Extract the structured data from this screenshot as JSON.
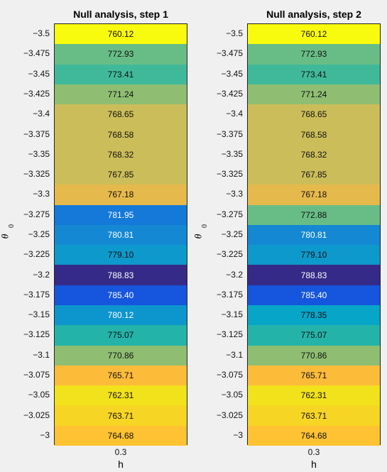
{
  "chart_data": [
    {
      "type": "heatmap",
      "title": "Null analysis, step 1",
      "xlabel": "h",
      "ylabel": "θ",
      "ylabel_subscript": "0",
      "x_categories": [
        "0.3"
      ],
      "y_categories": [
        "-3.5",
        "-3.475",
        "-3.45",
        "-3.425",
        "-3.4",
        "-3.375",
        "-3.35",
        "-3.325",
        "-3.3",
        "-3.275",
        "-3.25",
        "-3.225",
        "-3.2",
        "-3.175",
        "-3.15",
        "-3.125",
        "-3.1",
        "-3.075",
        "-3.05",
        "-3.025",
        "-3"
      ],
      "values": [
        760.12,
        772.93,
        773.41,
        771.24,
        768.65,
        768.58,
        768.32,
        767.85,
        767.18,
        781.95,
        780.81,
        779.1,
        788.83,
        785.4,
        780.12,
        775.07,
        770.86,
        765.71,
        762.31,
        763.71,
        764.68
      ],
      "colors": [
        "#f9fb0e",
        "#68bd86",
        "#40b99a",
        "#8fbe72",
        "#cbbd59",
        "#cbbd59",
        "#cbbd59",
        "#cbbd59",
        "#e6b94c",
        "#1479d9",
        "#1588d3",
        "#0d99cb",
        "#352a87",
        "#1655de",
        "#0d95cd",
        "#24b3a9",
        "#8fbe72",
        "#fdbb3a",
        "#f2e21b",
        "#f7d525",
        "#fec232"
      ]
    },
    {
      "type": "heatmap",
      "title": "Null analysis, step 2",
      "xlabel": "h",
      "ylabel": "θ",
      "ylabel_subscript": "0",
      "x_categories": [
        "0.3"
      ],
      "y_categories": [
        "-3.5",
        "-3.475",
        "-3.45",
        "-3.425",
        "-3.4",
        "-3.375",
        "-3.35",
        "-3.325",
        "-3.3",
        "-3.275",
        "-3.25",
        "-3.225",
        "-3.2",
        "-3.175",
        "-3.15",
        "-3.125",
        "-3.1",
        "-3.075",
        "-3.05",
        "-3.025",
        "-3"
      ],
      "values": [
        760.12,
        772.93,
        773.41,
        771.24,
        768.65,
        768.58,
        768.32,
        767.85,
        767.18,
        772.88,
        780.81,
        779.1,
        788.83,
        785.4,
        778.35,
        775.07,
        770.86,
        765.71,
        762.31,
        763.71,
        764.68
      ],
      "colors": [
        "#f9fb0e",
        "#68bd86",
        "#40b99a",
        "#8fbe72",
        "#cbbd59",
        "#cbbd59",
        "#cbbd59",
        "#cbbd59",
        "#e6b94c",
        "#68bd86",
        "#1588d3",
        "#0d99cb",
        "#352a87",
        "#1655de",
        "#07a5c8",
        "#24b3a9",
        "#8fbe72",
        "#fdbb3a",
        "#f2e21b",
        "#f7d525",
        "#fec232"
      ],
      "text_colors_light_for": [
        788.83,
        785.4,
        780.81,
        779.1,
        778.35,
        781.95,
        780.12
      ]
    }
  ]
}
